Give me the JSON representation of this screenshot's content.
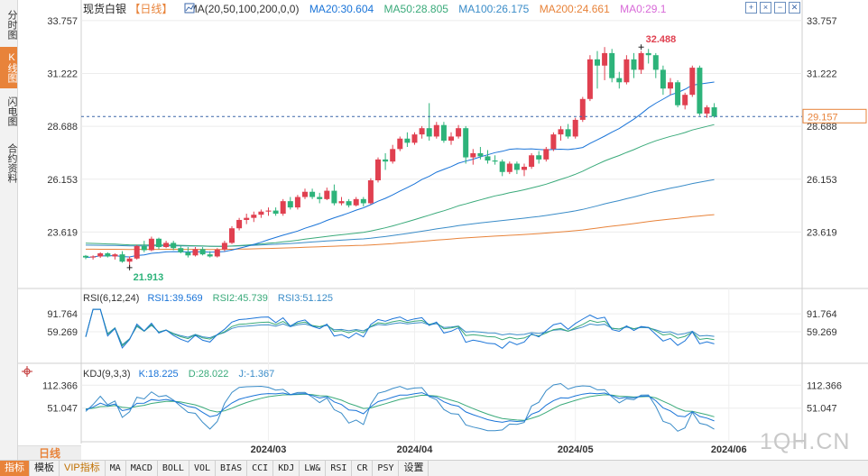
{
  "sidebar": {
    "tabs": [
      {
        "label": "分时图",
        "active": false
      },
      {
        "label": "K线图",
        "active": true
      },
      {
        "label": "闪电图",
        "active": false
      },
      {
        "label": "合约资料",
        "active": false
      }
    ]
  },
  "header": {
    "instrument": "现货白银",
    "period": "【日线】",
    "ma_params": "MA(20,50,100,200,0,0)",
    "ma20": "MA20:30.604",
    "ma50": "MA50:28.805",
    "ma100": "MA100:26.175",
    "ma200": "MA200:24.661",
    "ma0": "MA0:29.1"
  },
  "top_icons": [
    "expand-icon",
    "shrink-icon",
    "minus-icon",
    "close-icon"
  ],
  "colors": {
    "up": "#e04050",
    "down": "#2db37a",
    "ma20": "#1a74d8",
    "ma50": "#3aaa7a",
    "ma100": "#3a8cc8",
    "ma200": "#e8833a",
    "rsi1": "#1a74d8",
    "rsi2": "#3aaa7a",
    "rsi3": "#3a8cc8",
    "kdj_k": "#1a74d8",
    "kdj_d": "#3aaa7a",
    "kdj_j": "#3a8cc8",
    "current": "#e8833a"
  },
  "rsi_header": {
    "params": "RSI(6,12,24)",
    "rsi1": "RSI1:39.569",
    "rsi2": "RSI2:45.739",
    "rsi3": "RSI3:51.125"
  },
  "kdj_header": {
    "params": "KDJ(9,3,3)",
    "k": "K:18.225",
    "d": "D:28.022",
    "j": "J:-1.367"
  },
  "chart_data": [
    {
      "type": "candlestick",
      "ylim": [
        21.0,
        34.4
      ],
      "y_ticks": [
        33.757,
        31.222,
        28.688,
        26.153,
        23.619
      ],
      "y_tick_labels": [
        "33.757",
        "31.222",
        "28.688",
        "26.153",
        "23.619"
      ],
      "x_labels": [
        {
          "label": "2024/03",
          "index": 25
        },
        {
          "label": "2024/04",
          "index": 45
        },
        {
          "label": "2024/05",
          "index": 67
        },
        {
          "label": "2024/06",
          "index": 88
        }
      ],
      "current_price": 29.157,
      "current_label": "29.157",
      "high_label": "32.488",
      "high_index": 76,
      "high_value": 32.488,
      "low_label": "21.913",
      "low_index": 6,
      "low_value": 21.913,
      "candles": [
        [
          22.48,
          22.52,
          22.32,
          22.4
        ],
        [
          22.4,
          22.5,
          22.3,
          22.45
        ],
        [
          22.45,
          22.65,
          22.38,
          22.6
        ],
        [
          22.6,
          22.65,
          22.4,
          22.45
        ],
        [
          22.45,
          22.6,
          22.3,
          22.55
        ],
        [
          22.55,
          22.7,
          22.15,
          22.2
        ],
        [
          22.2,
          22.45,
          21.91,
          22.35
        ],
        [
          22.35,
          23.0,
          22.3,
          22.95
        ],
        [
          22.95,
          23.2,
          22.65,
          22.75
        ],
        [
          22.75,
          23.4,
          22.7,
          23.3
        ],
        [
          23.3,
          23.35,
          22.8,
          22.9
        ],
        [
          22.9,
          23.2,
          22.85,
          23.1
        ],
        [
          23.1,
          23.2,
          22.75,
          22.85
        ],
        [
          22.85,
          22.95,
          22.6,
          22.65
        ],
        [
          22.65,
          22.9,
          22.4,
          22.5
        ],
        [
          22.5,
          22.9,
          22.45,
          22.8
        ],
        [
          22.8,
          22.9,
          22.5,
          22.55
        ],
        [
          22.55,
          22.7,
          22.4,
          22.45
        ],
        [
          22.45,
          22.85,
          22.4,
          22.78
        ],
        [
          22.78,
          23.2,
          22.7,
          23.1
        ],
        [
          23.1,
          23.9,
          23.05,
          23.8
        ],
        [
          23.8,
          24.3,
          23.7,
          24.2
        ],
        [
          24.2,
          24.5,
          24.0,
          24.3
        ],
        [
          24.3,
          24.6,
          24.1,
          24.45
        ],
        [
          24.45,
          24.7,
          24.3,
          24.6
        ],
        [
          24.6,
          24.8,
          24.4,
          24.65
        ],
        [
          24.65,
          24.8,
          24.4,
          24.5
        ],
        [
          24.5,
          25.2,
          24.4,
          25.1
        ],
        [
          25.1,
          25.3,
          24.7,
          24.8
        ],
        [
          24.8,
          25.4,
          24.7,
          25.3
        ],
        [
          25.3,
          25.7,
          25.2,
          25.55
        ],
        [
          25.55,
          25.7,
          25.2,
          25.3
        ],
        [
          25.3,
          25.5,
          25.0,
          25.2
        ],
        [
          25.2,
          25.75,
          25.15,
          25.6
        ],
        [
          25.6,
          25.9,
          24.9,
          25.0
        ],
        [
          25.0,
          25.3,
          24.9,
          25.1
        ],
        [
          25.1,
          25.2,
          24.8,
          24.9
        ],
        [
          24.9,
          25.3,
          24.85,
          25.2
        ],
        [
          25.2,
          25.3,
          24.85,
          25.0
        ],
        [
          25.0,
          26.2,
          24.95,
          26.1
        ],
        [
          26.1,
          27.2,
          26.0,
          27.1
        ],
        [
          27.1,
          27.4,
          26.6,
          27.0
        ],
        [
          27.0,
          27.8,
          26.9,
          27.6
        ],
        [
          27.6,
          28.2,
          27.5,
          28.1
        ],
        [
          28.1,
          28.4,
          27.7,
          27.9
        ],
        [
          27.9,
          28.4,
          27.8,
          28.3
        ],
        [
          28.3,
          28.7,
          28.1,
          28.6
        ],
        [
          28.6,
          29.8,
          28.0,
          28.2
        ],
        [
          28.2,
          28.9,
          28.1,
          28.75
        ],
        [
          28.75,
          28.9,
          27.9,
          28.0
        ],
        [
          28.0,
          28.4,
          27.8,
          28.2
        ],
        [
          28.2,
          28.75,
          28.1,
          28.6
        ],
        [
          28.6,
          28.7,
          26.9,
          27.2
        ],
        [
          27.2,
          27.6,
          26.85,
          27.4
        ],
        [
          27.4,
          27.7,
          27.1,
          27.25
        ],
        [
          27.25,
          27.55,
          26.9,
          27.05
        ],
        [
          27.05,
          27.3,
          26.85,
          27.0
        ],
        [
          27.0,
          27.1,
          26.3,
          26.5
        ],
        [
          26.5,
          27.0,
          26.4,
          26.9
        ],
        [
          26.9,
          27.0,
          26.4,
          26.6
        ],
        [
          26.6,
          26.9,
          26.3,
          26.75
        ],
        [
          26.75,
          27.4,
          26.65,
          27.3
        ],
        [
          27.3,
          27.5,
          26.9,
          27.1
        ],
        [
          27.1,
          27.7,
          27.0,
          27.6
        ],
        [
          27.6,
          28.4,
          27.5,
          28.3
        ],
        [
          28.3,
          28.7,
          28.0,
          28.55
        ],
        [
          28.55,
          28.8,
          28.1,
          28.2
        ],
        [
          28.2,
          29.1,
          28.1,
          29.0
        ],
        [
          29.0,
          30.1,
          28.9,
          30.0
        ],
        [
          30.0,
          32.1,
          29.9,
          31.9
        ],
        [
          31.9,
          32.3,
          30.5,
          31.6
        ],
        [
          31.6,
          32.49,
          30.9,
          32.2
        ],
        [
          32.2,
          32.4,
          30.8,
          31.0
        ],
        [
          31.0,
          31.3,
          30.5,
          30.8
        ],
        [
          30.8,
          32.1,
          30.7,
          31.9
        ],
        [
          31.9,
          32.2,
          31.0,
          31.4
        ],
        [
          31.4,
          32.3,
          31.2,
          32.2
        ],
        [
          32.2,
          32.4,
          31.7,
          32.1
        ],
        [
          32.1,
          32.2,
          31.0,
          31.4
        ],
        [
          31.4,
          31.6,
          30.2,
          30.5
        ],
        [
          30.5,
          31.0,
          30.2,
          30.8
        ],
        [
          30.8,
          30.9,
          29.6,
          29.7
        ],
        [
          29.7,
          30.3,
          29.5,
          30.2
        ],
        [
          30.2,
          31.6,
          30.1,
          31.5
        ],
        [
          31.5,
          31.6,
          29.2,
          29.3
        ],
        [
          29.3,
          29.7,
          29.1,
          29.6
        ],
        [
          29.6,
          29.8,
          29.1,
          29.16
        ]
      ]
    },
    {
      "type": "line",
      "name": "RSI",
      "ylim": [
        20,
        105
      ],
      "y_ticks": [
        91.764,
        59.269
      ],
      "y_tick_labels": [
        "91.764",
        "59.269"
      ]
    },
    {
      "type": "line",
      "name": "KDJ",
      "ylim": [
        -10,
        130
      ],
      "y_ticks": [
        112.366,
        51.047
      ],
      "y_tick_labels": [
        "112.366",
        "51.047"
      ]
    }
  ],
  "bottom_tabs": [
    {
      "label": "指标",
      "style": "active"
    },
    {
      "label": "模板",
      "style": "cn"
    },
    {
      "label": "VIP指标",
      "style": "vip"
    },
    {
      "label": "MA",
      "style": ""
    },
    {
      "label": "MACD",
      "style": ""
    },
    {
      "label": "BOLL",
      "style": ""
    },
    {
      "label": "VOL",
      "style": ""
    },
    {
      "label": "BIAS",
      "style": ""
    },
    {
      "label": "CCI",
      "style": ""
    },
    {
      "label": "KDJ",
      "style": ""
    },
    {
      "label": "LW&",
      "style": ""
    },
    {
      "label": "RSI",
      "style": ""
    },
    {
      "label": "CR",
      "style": ""
    },
    {
      "label": "PSY",
      "style": ""
    },
    {
      "label": "设置",
      "style": "cn"
    }
  ],
  "period_button": "日线",
  "watermark": "1QH.CN"
}
